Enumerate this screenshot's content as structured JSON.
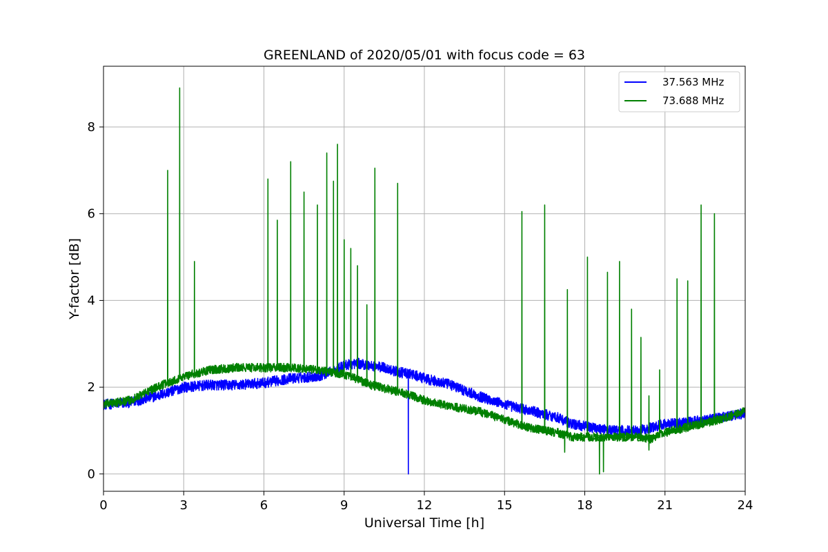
{
  "chart_data": {
    "type": "line",
    "title": "GREENLAND of 2020/05/01 with focus code = 63",
    "xlabel": "Universal Time [h]",
    "ylabel": "Y-factor [dB]",
    "xlim": [
      0,
      24
    ],
    "ylim": [
      -0.4,
      9.4
    ],
    "xticks": [
      0,
      3,
      6,
      9,
      12,
      15,
      18,
      21,
      24
    ],
    "xtick_labels": [
      "0",
      "3",
      "6",
      "9",
      "12",
      "15",
      "18",
      "21",
      "24"
    ],
    "yticks": [
      0,
      2,
      4,
      6,
      8
    ],
    "ytick_labels": [
      "0",
      "2",
      "4",
      "6",
      "8"
    ],
    "grid": true,
    "legend": "top-right",
    "series": [
      {
        "name": "37.563 MHz",
        "color": "#0000ff",
        "noise": 0.12,
        "x": [
          0,
          1,
          2,
          3,
          4,
          5,
          6,
          7,
          8,
          8.5,
          9,
          9.5,
          10,
          10.5,
          11,
          11.5,
          12,
          13,
          14,
          15,
          16,
          17,
          17.5,
          18,
          18.5,
          19,
          20,
          21,
          22,
          23,
          24
        ],
        "y": [
          1.6,
          1.65,
          1.8,
          2.0,
          2.05,
          2.05,
          2.1,
          2.2,
          2.25,
          2.35,
          2.5,
          2.55,
          2.5,
          2.45,
          2.35,
          2.3,
          2.2,
          2.05,
          1.8,
          1.6,
          1.45,
          1.3,
          1.15,
          1.1,
          1.05,
          1.0,
          1.0,
          1.15,
          1.2,
          1.3,
          1.4
        ],
        "spikes": [
          {
            "x": 11.4,
            "y": 0.0
          }
        ]
      },
      {
        "name": "73.688 MHz",
        "color": "#008000",
        "noise": 0.1,
        "x": [
          0,
          1,
          2,
          3,
          4,
          5,
          6,
          7,
          8,
          9,
          10,
          11,
          12,
          13,
          14,
          15,
          16,
          17,
          17.5,
          18,
          18.5,
          19,
          20,
          20.5,
          21,
          22,
          23,
          24
        ],
        "y": [
          1.6,
          1.7,
          2.0,
          2.25,
          2.4,
          2.45,
          2.45,
          2.45,
          2.4,
          2.3,
          2.05,
          1.9,
          1.7,
          1.55,
          1.45,
          1.25,
          1.05,
          0.95,
          0.85,
          0.85,
          0.85,
          0.85,
          0.85,
          0.8,
          0.95,
          1.1,
          1.25,
          1.45
        ],
        "spikes": [
          {
            "x": 2.4,
            "y": 7.0
          },
          {
            "x": 2.85,
            "y": 8.9
          },
          {
            "x": 3.4,
            "y": 4.9
          },
          {
            "x": 6.15,
            "y": 6.8
          },
          {
            "x": 6.5,
            "y": 5.85
          },
          {
            "x": 7.0,
            "y": 7.2
          },
          {
            "x": 7.5,
            "y": 6.5
          },
          {
            "x": 8.0,
            "y": 6.2
          },
          {
            "x": 8.35,
            "y": 7.4
          },
          {
            "x": 8.6,
            "y": 6.75
          },
          {
            "x": 8.75,
            "y": 7.6
          },
          {
            "x": 9.0,
            "y": 5.4
          },
          {
            "x": 9.25,
            "y": 5.2
          },
          {
            "x": 9.5,
            "y": 4.8
          },
          {
            "x": 9.85,
            "y": 3.9
          },
          {
            "x": 10.15,
            "y": 7.05
          },
          {
            "x": 11.0,
            "y": 6.7
          },
          {
            "x": 15.65,
            "y": 6.05
          },
          {
            "x": 16.5,
            "y": 6.2
          },
          {
            "x": 17.35,
            "y": 4.25
          },
          {
            "x": 18.1,
            "y": 5.0
          },
          {
            "x": 18.85,
            "y": 4.65
          },
          {
            "x": 19.3,
            "y": 4.9
          },
          {
            "x": 19.75,
            "y": 3.8
          },
          {
            "x": 20.1,
            "y": 3.15
          },
          {
            "x": 20.4,
            "y": 1.8
          },
          {
            "x": 20.8,
            "y": 2.4
          },
          {
            "x": 21.45,
            "y": 4.5
          },
          {
            "x": 21.85,
            "y": 4.45
          },
          {
            "x": 22.35,
            "y": 6.2
          },
          {
            "x": 22.85,
            "y": 6.0
          }
        ],
        "dips": [
          {
            "x": 18.55,
            "y": 0.0
          },
          {
            "x": 18.7,
            "y": 0.05
          },
          {
            "x": 17.25,
            "y": 0.5
          },
          {
            "x": 20.4,
            "y": 0.55
          }
        ]
      }
    ]
  }
}
